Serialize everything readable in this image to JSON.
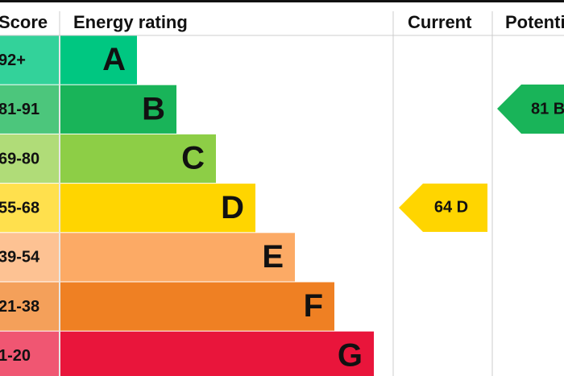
{
  "header": {
    "score": "Score",
    "rating": "Energy rating",
    "current": "Current",
    "potential": "Potential"
  },
  "rows": [
    {
      "score": "92+",
      "letter": "A"
    },
    {
      "score": "81-91",
      "letter": "B"
    },
    {
      "score": "69-80",
      "letter": "C"
    },
    {
      "score": "55-68",
      "letter": "D"
    },
    {
      "score": "39-54",
      "letter": "E"
    },
    {
      "score": "21-38",
      "letter": "F"
    },
    {
      "score": "1-20",
      "letter": "G"
    }
  ],
  "current": "64 D",
  "potential": "81 B"
}
